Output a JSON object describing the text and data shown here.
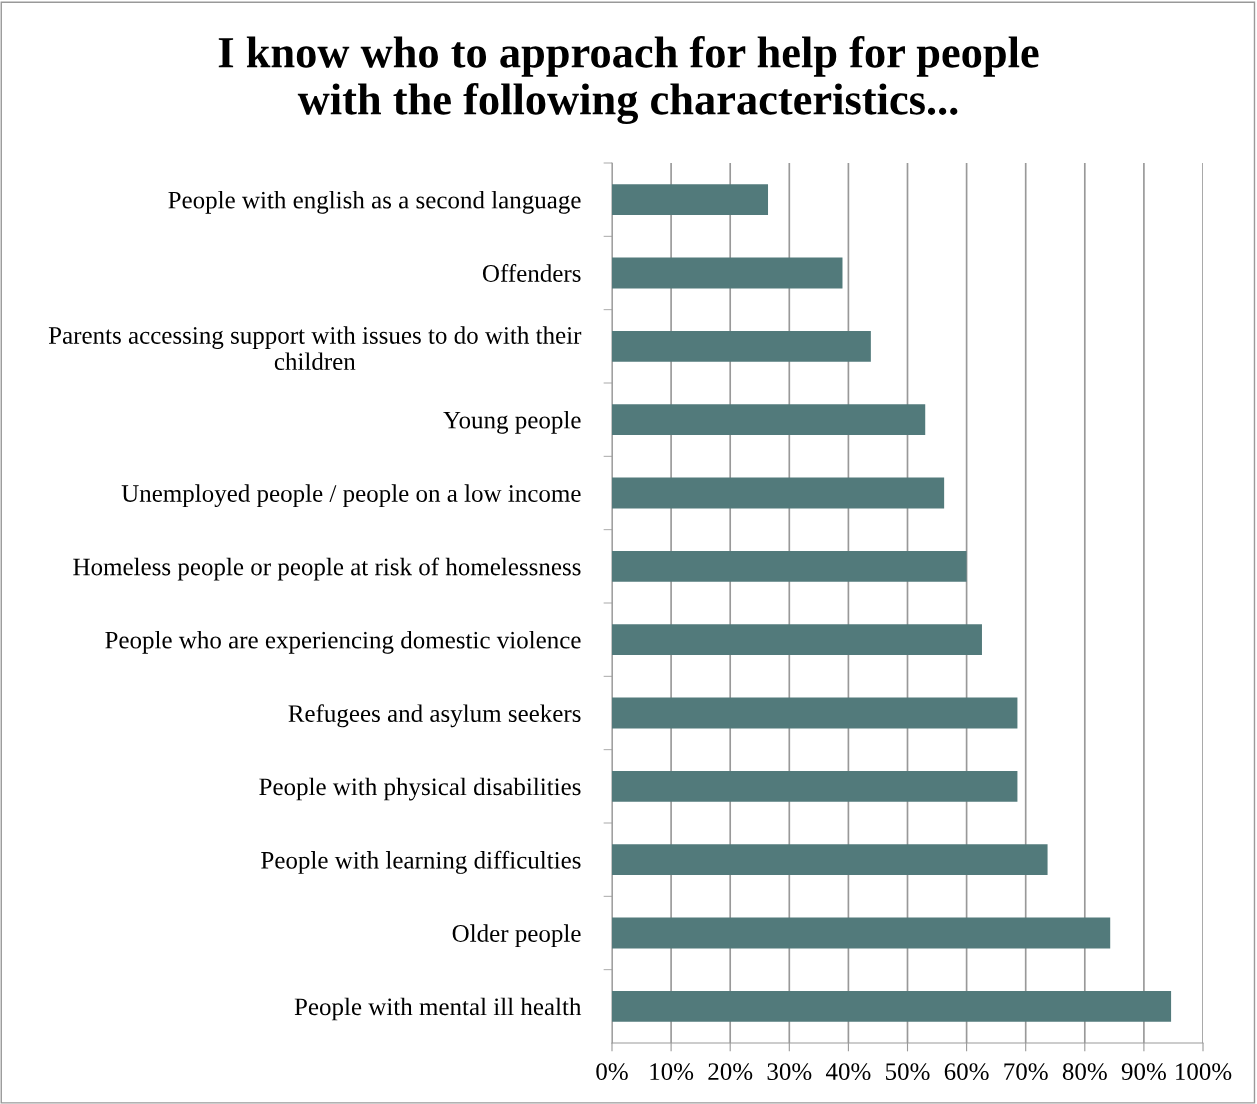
{
  "chart_data": {
    "type": "bar",
    "orientation": "horizontal",
    "title": "I know who to approach for help for people\nwith the following characteristics...",
    "categories": [
      "People with english as a second language",
      "Offenders",
      "Parents accessing support with issues to do with their children",
      "Young people",
      "Unemployed people / people on a low income",
      "Homeless people or people at risk of homelessness",
      "People who are experiencing domestic violence",
      "Refugees and asylum seekers",
      "People with physical disabilities",
      "People with learning difficulties",
      "Older people",
      "People with mental ill health"
    ],
    "values": [
      26.4,
      39.0,
      43.8,
      53.0,
      56.2,
      60.0,
      62.6,
      68.6,
      68.6,
      73.7,
      84.3,
      94.6
    ],
    "color": "#527a7b",
    "xlim": [
      0,
      100
    ],
    "xticks": [
      {
        "value": 0,
        "label": "0%"
      },
      {
        "value": 10,
        "label": "10%"
      },
      {
        "value": 20,
        "label": "20%"
      },
      {
        "value": 30,
        "label": "30%"
      },
      {
        "value": 40,
        "label": "40%"
      },
      {
        "value": 50,
        "label": "50%"
      },
      {
        "value": 60,
        "label": "60%"
      },
      {
        "value": 70,
        "label": "70%"
      },
      {
        "value": 80,
        "label": "80%"
      },
      {
        "value": 90,
        "label": "90%"
      },
      {
        "value": 100,
        "label": "100%"
      }
    ],
    "grid": "x",
    "legend": false
  }
}
